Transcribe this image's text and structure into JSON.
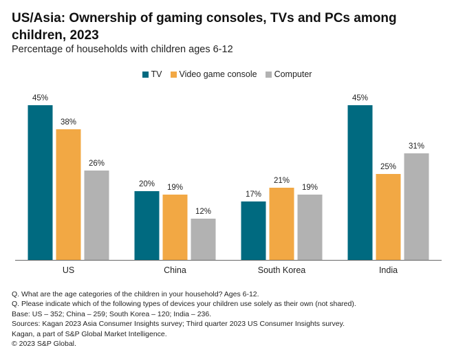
{
  "title": "US/Asia: Ownership of gaming consoles, TVs and PCs among children, 2023",
  "subtitle": "Percentage of households with children ages 6-12",
  "colors": {
    "tv": "#006a80",
    "console": "#f2a844",
    "computer": "#b2b2b2",
    "axis": "#666666"
  },
  "chart_data": {
    "type": "bar",
    "categories": [
      "US",
      "China",
      "South Korea",
      "India"
    ],
    "series": [
      {
        "name": "TV",
        "values": [
          45,
          20,
          17,
          45
        ],
        "labels": [
          "45%",
          "20%",
          "17%",
          "45%"
        ]
      },
      {
        "name": "Video game console",
        "values": [
          38,
          19,
          21,
          25
        ],
        "labels": [
          "38%",
          "19%",
          "21%",
          "25%"
        ]
      },
      {
        "name": "Computer",
        "values": [
          26,
          12,
          19,
          31
        ],
        "labels": [
          "26%",
          "12%",
          "19%",
          "31%"
        ]
      }
    ],
    "ylim": [
      0,
      50
    ],
    "xlabel": "",
    "ylabel": "",
    "legend_position": "top-center",
    "grid": false
  },
  "notes": [
    "Q. What are the age categories of the children in your household? Ages 6-12.",
    "Q. Please indicate which of the following types of devices your children use solely as their own (not shared).",
    "Base: US – 352; China – 259; South Korea – 120; India – 236.",
    "Sources: Kagan 2023 Asia Consumer Insights survey; Third quarter 2023 US Consumer Insights survey.",
    "Kagan, a part of S&P Global Market Intelligence.",
    "© 2023 S&P Global."
  ]
}
